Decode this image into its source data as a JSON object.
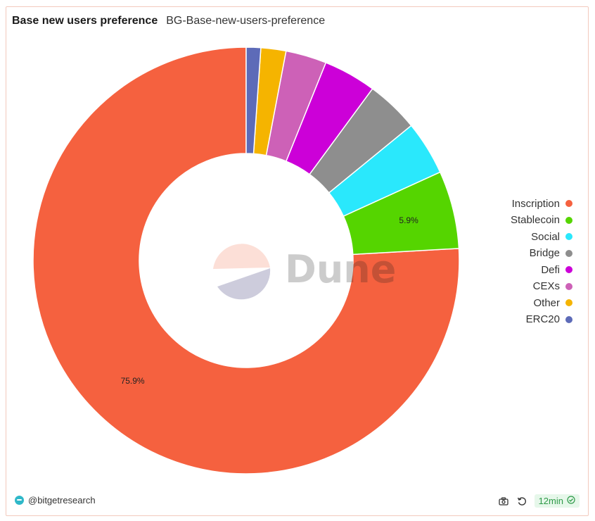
{
  "header": {
    "title": "Base new users preference",
    "subtitle": "BG-Base-new-users-preference"
  },
  "chart_data": {
    "type": "pie",
    "donut": true,
    "title": "",
    "legend_position": "right",
    "watermark": "Dune",
    "slices": [
      {
        "label": "Inscription",
        "value": 75.9,
        "color": "#f5613f",
        "data_label": "75.9%"
      },
      {
        "label": "Stablecoin",
        "value": 5.9,
        "color": "#55d500",
        "data_label": "5.9%"
      },
      {
        "label": "Social",
        "value": 4.1,
        "color": "#2ae8fc",
        "data_label": ""
      },
      {
        "label": "Bridge",
        "value": 4.0,
        "color": "#8e8e8e",
        "data_label": ""
      },
      {
        "label": "Defi",
        "value": 4.0,
        "color": "#cc00d8",
        "data_label": ""
      },
      {
        "label": "CEXs",
        "value": 3.1,
        "color": "#cd61b7",
        "data_label": ""
      },
      {
        "label": "Other",
        "value": 1.9,
        "color": "#f5b400",
        "data_label": ""
      },
      {
        "label": "ERC20",
        "value": 1.1,
        "color": "#5d6bb8",
        "data_label": ""
      }
    ]
  },
  "footer": {
    "author": "@bitgetresearch",
    "refresh_age": "12min",
    "icons": [
      "camera-icon",
      "refresh-icon",
      "check-circle-icon"
    ]
  }
}
